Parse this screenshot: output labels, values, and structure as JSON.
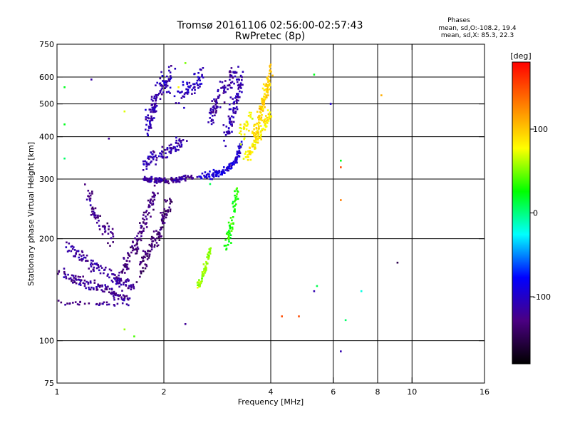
{
  "chart_data": {
    "type": "scatter",
    "title": "Tromsø 20161106 02:56:00-02:57:43",
    "subtitle": "RwPretec (8p)",
    "xlabel": "Frequency [MHz]",
    "ylabel": "Stationary phase Virtual Height [km]",
    "x_scale": "log",
    "y_scale": "log",
    "xlim": [
      1,
      16
    ],
    "ylim": [
      75,
      750
    ],
    "x_ticks": [
      1,
      2,
      4,
      6,
      8,
      10,
      16
    ],
    "x_tick_labels": [
      "1",
      "2",
      "4",
      "6",
      "8",
      "10",
      "16"
    ],
    "y_ticks": [
      75,
      100,
      200,
      300,
      400,
      500,
      600,
      750
    ],
    "y_tick_labels": [
      "75",
      "100",
      "200",
      "300",
      "400",
      "500",
      "600",
      "750"
    ],
    "x_grid": [
      2,
      4,
      6,
      8,
      10
    ],
    "y_grid": [
      100,
      200,
      300,
      400,
      500,
      600
    ],
    "grid": true,
    "colorbar": {
      "label": "[deg]",
      "range": [
        -180,
        180
      ],
      "ticks": [
        100,
        0,
        -100
      ],
      "tick_labels": [
        "100",
        "0",
        "-100"
      ],
      "colors": [
        "#000000",
        "#4b0082",
        "#0000ff",
        "#00ffff",
        "#00ff00",
        "#ffff00",
        "#ff8000",
        "#ff0000"
      ]
    },
    "stats": {
      "header": "Phases",
      "line1": "mean, sd,O:-108.2, 19.4",
      "line2": "mean, sd,X:  85.3, 22.3"
    },
    "series": [
      {
        "traces": [
          {
            "f": [
              1.0,
              1.5
            ],
            "h": [
              130,
              128
            ],
            "ph": -125,
            "sp": 4
          },
          {
            "f": [
              1.0,
              1.15,
              1.3,
              1.45,
              1.6
            ],
            "h": [
              160,
              150,
              145,
              138,
              132
            ],
            "ph": -120,
            "sp": 10
          },
          {
            "f": [
              1.05,
              1.2,
              1.35,
              1.5,
              1.65
            ],
            "h": [
              190,
              175,
              160,
              150,
              145
            ],
            "ph": -118,
            "sp": 14
          },
          {
            "f": [
              1.2,
              1.3,
              1.45
            ],
            "h": [
              280,
              230,
              200
            ],
            "ph": -125,
            "sp": 20
          },
          {
            "f": [
              1.5,
              1.6,
              1.7,
              1.8,
              1.9
            ],
            "h": [
              155,
              175,
              200,
              240,
              280
            ],
            "ph": -130,
            "sp": 16
          },
          {
            "f": [
              1.7,
              1.8,
              1.9,
              2.0,
              2.1
            ],
            "h": [
              160,
              180,
              200,
              230,
              260
            ],
            "ph": -135,
            "sp": 18
          },
          {
            "f": [
              1.75,
              1.85,
              2.0,
              2.2,
              2.5
            ],
            "h": [
              300,
              300,
              295,
              300,
              305
            ],
            "ph": -118,
            "sp": 6
          },
          {
            "f": [
              2.5,
              2.8,
              3.0,
              3.2,
              3.3
            ],
            "h": [
              305,
              310,
              320,
              340,
              380
            ],
            "ph": -95,
            "sp": 8
          },
          {
            "f": [
              1.75,
              1.9,
              2.1,
              2.3
            ],
            "h": [
              330,
              350,
              370,
              390
            ],
            "ph": -110,
            "sp": 14
          },
          {
            "f": [
              3.0,
              3.1,
              3.2,
              3.3
            ],
            "h": [
              400,
              450,
              520,
              600
            ],
            "ph": -110,
            "sp": 20
          },
          {
            "f": [
              2.2,
              2.4,
              2.6
            ],
            "h": [
              520,
              560,
              620
            ],
            "ph": -105,
            "sp": 24
          },
          {
            "f": [
              1.8,
              1.85,
              1.9,
              2.0,
              2.1
            ],
            "h": [
              420,
              470,
              520,
              570,
              610
            ],
            "ph": -108,
            "sp": 22
          },
          {
            "f": [
              2.7,
              2.8,
              3.0,
              3.2
            ],
            "h": [
              450,
              500,
              560,
              620
            ],
            "ph": -115,
            "sp": 22
          },
          {
            "f": [
              3.4,
              3.6,
              3.8,
              4.0
            ],
            "h": [
              350,
              380,
              420,
              470
            ],
            "ph": 85,
            "sp": 14
          },
          {
            "f": [
              3.6,
              3.7,
              3.8,
              3.9,
              4.0
            ],
            "h": [
              400,
              450,
              500,
              560,
              620
            ],
            "ph": 95,
            "sp": 16
          },
          {
            "f": [
              3.3,
              3.5
            ],
            "h": [
              400,
              460
            ],
            "ph": 78,
            "sp": 18
          },
          {
            "f": [
              3.0,
              3.1,
              3.2
            ],
            "h": [
              190,
              220,
              275
            ],
            "ph": 30,
            "sp": 14
          },
          {
            "f": [
              2.5,
              2.6,
              2.7
            ],
            "h": [
              145,
              160,
              185
            ],
            "ph": 55,
            "sp": 8
          }
        ],
        "points": [
          {
            "f": 1.05,
            "h": 560,
            "ph": 20
          },
          {
            "f": 1.25,
            "h": 590,
            "ph": -115
          },
          {
            "f": 1.05,
            "h": 435,
            "ph": 20
          },
          {
            "f": 1.05,
            "h": 345,
            "ph": 5
          },
          {
            "f": 1.4,
            "h": 395,
            "ph": -120
          },
          {
            "f": 1.55,
            "h": 475,
            "ph": 70
          },
          {
            "f": 1.55,
            "h": 108,
            "ph": 55
          },
          {
            "f": 1.65,
            "h": 103,
            "ph": 40
          },
          {
            "f": 2.3,
            "h": 112,
            "ph": -120
          },
          {
            "f": 2.3,
            "h": 660,
            "ph": 50
          },
          {
            "f": 2.2,
            "h": 560,
            "ph": 80
          },
          {
            "f": 2.7,
            "h": 290,
            "ph": 10
          },
          {
            "f": 4.3,
            "h": 118,
            "ph": 150
          },
          {
            "f": 4.8,
            "h": 118,
            "ph": 150
          },
          {
            "f": 5.3,
            "h": 140,
            "ph": -110
          },
          {
            "f": 5.4,
            "h": 145,
            "ph": 10
          },
          {
            "f": 5.3,
            "h": 610,
            "ph": 20
          },
          {
            "f": 5.9,
            "h": 500,
            "ph": -100
          },
          {
            "f": 6.3,
            "h": 340,
            "ph": 20
          },
          {
            "f": 6.3,
            "h": 325,
            "ph": 150
          },
          {
            "f": 6.3,
            "h": 260,
            "ph": 130
          },
          {
            "f": 6.5,
            "h": 115,
            "ph": 5
          },
          {
            "f": 6.3,
            "h": 93,
            "ph": -110
          },
          {
            "f": 7.2,
            "h": 140,
            "ph": -20
          },
          {
            "f": 8.2,
            "h": 530,
            "ph": 110
          },
          {
            "f": 9.1,
            "h": 170,
            "ph": -150
          }
        ]
      }
    ]
  }
}
